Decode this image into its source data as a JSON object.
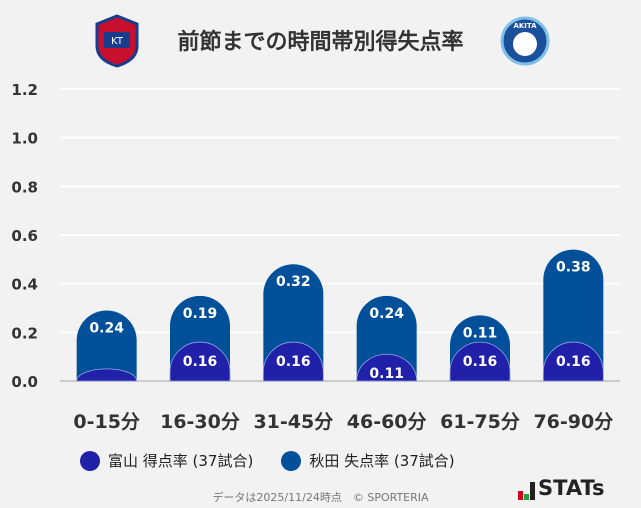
{
  "header": {
    "title": "前節までの時間帯別得失点率",
    "home_emblem": "toyama-emblem",
    "away_emblem": "akita-emblem"
  },
  "chart_data": {
    "type": "bar",
    "stacked": true,
    "categories": [
      "0-15分",
      "16-30分",
      "31-45分",
      "46-60分",
      "61-75分",
      "76-90分"
    ],
    "series": [
      {
        "name": "富山 得点率 (37試合)",
        "values": [
          0.05,
          0.16,
          0.16,
          0.11,
          0.16,
          0.16
        ],
        "labels": [
          "",
          "0.16",
          "0.16",
          "0.11",
          "0.16",
          "0.16"
        ],
        "color": "#2020a8"
      },
      {
        "name": "秋田 失点率 (37試合)",
        "values": [
          0.24,
          0.19,
          0.32,
          0.24,
          0.11,
          0.38
        ],
        "labels": [
          "0.24",
          "0.19",
          "0.32",
          "0.24",
          "0.11",
          "0.38"
        ],
        "color": "#02509a"
      }
    ],
    "yticks": [
      "0.0",
      "0.2",
      "0.4",
      "0.6",
      "0.8",
      "1.0",
      "1.2"
    ],
    "ylim": [
      0,
      1.2
    ],
    "grid": true,
    "legend": "bottom"
  },
  "footer": {
    "note": "データは2025/11/24時点　© SPORTERIA",
    "brand": "STATs"
  }
}
